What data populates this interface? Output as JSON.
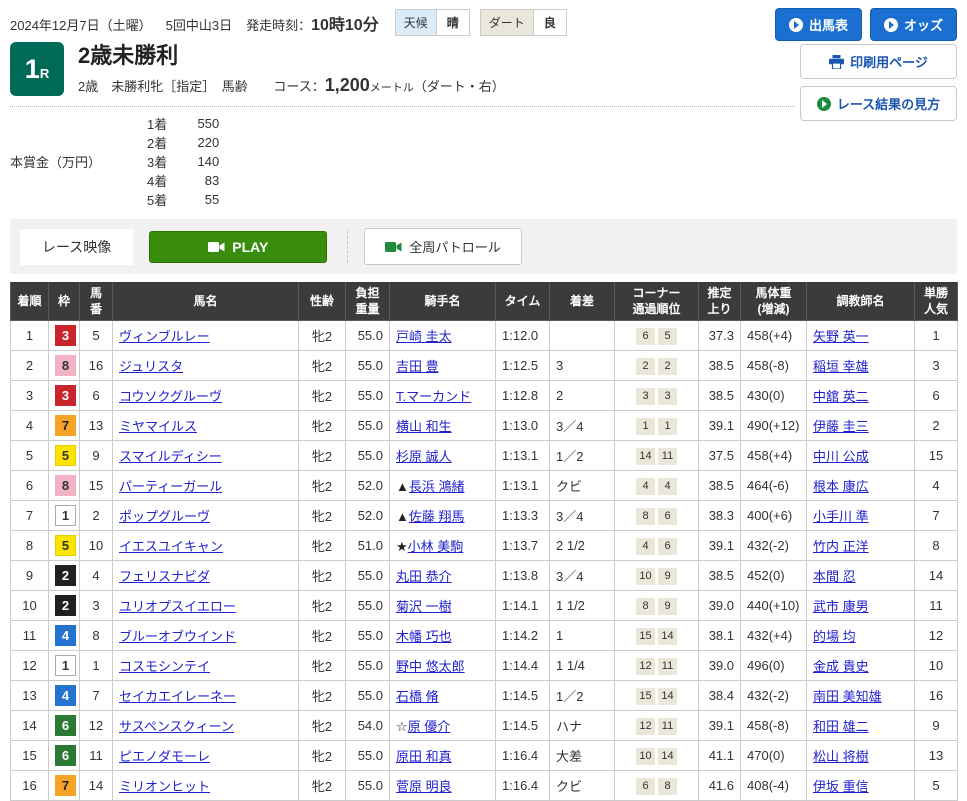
{
  "top": {
    "date": "2024年12月7日（土曜）",
    "meeting": "5回中山3日",
    "start_label": "発走時刻：",
    "start_time": "10時10分",
    "weather_label": "天候",
    "weather_value": "晴",
    "track_label": "ダート",
    "track_value": "良",
    "shutsuba_button": "出馬表",
    "odds_button": "オッズ",
    "print_button": "印刷用ページ",
    "guide_button": "レース結果の見方"
  },
  "race": {
    "number": "1",
    "number_suffix": "R",
    "title": "2歳未勝利",
    "conditions": "2歳　未勝利牝［指定］　馬齢",
    "course_label": "コース：",
    "course_value": "1,200",
    "course_unit": "メートル",
    "course_note": "（ダート・右）"
  },
  "prize": {
    "label": "本賞金（万円）",
    "items": [
      {
        "place": "1着",
        "amount": "550"
      },
      {
        "place": "2着",
        "amount": "220"
      },
      {
        "place": "3着",
        "amount": "140"
      },
      {
        "place": "4着",
        "amount": "83"
      },
      {
        "place": "5着",
        "amount": "55"
      }
    ]
  },
  "video": {
    "race_video_label": "レース映像",
    "play_label": "PLAY",
    "patrol_label": "全周パトロール"
  },
  "table": {
    "columns": [
      "着順",
      "枠",
      "馬\n番",
      "馬名",
      "性齢",
      "負担\n重量",
      "騎手名",
      "タイム",
      "着差",
      "コーナー\n通過順位",
      "推定\n上り",
      "馬体重\n(増減)",
      "調教師名",
      "単勝\n人気"
    ],
    "rows": [
      {
        "rank": "1",
        "waku": "3",
        "num": "5",
        "horse": "ヴィンブルレー",
        "sexage": "牝2",
        "weight": "55.0",
        "mark": "",
        "jockey": "戸崎 圭太",
        "time": "1:12.0",
        "margin": "",
        "corners": [
          "6",
          "5"
        ],
        "agari": "37.3",
        "hweight": "458(+4)",
        "trainer": "矢野 英一",
        "fav": "1"
      },
      {
        "rank": "2",
        "waku": "8",
        "num": "16",
        "horse": "ジュリスタ",
        "sexage": "牝2",
        "weight": "55.0",
        "mark": "",
        "jockey": "吉田 豊",
        "time": "1:12.5",
        "margin": "3",
        "corners": [
          "2",
          "2"
        ],
        "agari": "38.5",
        "hweight": "458(-8)",
        "trainer": "稲垣 幸雄",
        "fav": "3"
      },
      {
        "rank": "3",
        "waku": "3",
        "num": "6",
        "horse": "コウソクグルーヴ",
        "sexage": "牝2",
        "weight": "55.0",
        "mark": "",
        "jockey": "T.マーカンド",
        "time": "1:12.8",
        "margin": "2",
        "corners": [
          "3",
          "3"
        ],
        "agari": "38.5",
        "hweight": "430(0)",
        "trainer": "中舘 英二",
        "fav": "6"
      },
      {
        "rank": "4",
        "waku": "7",
        "num": "13",
        "horse": "ミヤマイルス",
        "sexage": "牝2",
        "weight": "55.0",
        "mark": "",
        "jockey": "横山 和生",
        "time": "1:13.0",
        "margin": "3／4",
        "corners": [
          "1",
          "1"
        ],
        "agari": "39.1",
        "hweight": "490(+12)",
        "trainer": "伊藤 圭三",
        "fav": "2"
      },
      {
        "rank": "5",
        "waku": "5",
        "num": "9",
        "horse": "スマイルディシー",
        "sexage": "牝2",
        "weight": "55.0",
        "mark": "",
        "jockey": "杉原 誠人",
        "time": "1:13.1",
        "margin": "1／2",
        "corners": [
          "14",
          "11"
        ],
        "agari": "37.5",
        "hweight": "458(+4)",
        "trainer": "中川 公成",
        "fav": "15"
      },
      {
        "rank": "6",
        "waku": "8",
        "num": "15",
        "horse": "パーティーガール",
        "sexage": "牝2",
        "weight": "52.0",
        "mark": "▲",
        "jockey": "長浜 鴻緒",
        "time": "1:13.1",
        "margin": "クビ",
        "corners": [
          "4",
          "4"
        ],
        "agari": "38.5",
        "hweight": "464(-6)",
        "trainer": "根本 康広",
        "fav": "4"
      },
      {
        "rank": "7",
        "waku": "1",
        "num": "2",
        "horse": "ポップグルーヴ",
        "sexage": "牝2",
        "weight": "52.0",
        "mark": "▲",
        "jockey": "佐藤 翔馬",
        "time": "1:13.3",
        "margin": "3／4",
        "corners": [
          "8",
          "6"
        ],
        "agari": "38.3",
        "hweight": "400(+6)",
        "trainer": "小手川 準",
        "fav": "7"
      },
      {
        "rank": "8",
        "waku": "5",
        "num": "10",
        "horse": "イエスユイキャン",
        "sexage": "牝2",
        "weight": "51.0",
        "mark": "★",
        "jockey": "小林 美駒",
        "time": "1:13.7",
        "margin": "2 1/2",
        "corners": [
          "4",
          "6"
        ],
        "agari": "39.1",
        "hweight": "432(-2)",
        "trainer": "竹内 正洋",
        "fav": "8"
      },
      {
        "rank": "9",
        "waku": "2",
        "num": "4",
        "horse": "フェリスナビダ",
        "sexage": "牝2",
        "weight": "55.0",
        "mark": "",
        "jockey": "丸田 恭介",
        "time": "1:13.8",
        "margin": "3／4",
        "corners": [
          "10",
          "9"
        ],
        "agari": "38.5",
        "hweight": "452(0)",
        "trainer": "本間 忍",
        "fav": "14"
      },
      {
        "rank": "10",
        "waku": "2",
        "num": "3",
        "horse": "ユリオプスイエロー",
        "sexage": "牝2",
        "weight": "55.0",
        "mark": "",
        "jockey": "菊沢 一樹",
        "time": "1:14.1",
        "margin": "1 1/2",
        "corners": [
          "8",
          "9"
        ],
        "agari": "39.0",
        "hweight": "440(+10)",
        "trainer": "武市 康男",
        "fav": "11"
      },
      {
        "rank": "11",
        "waku": "4",
        "num": "8",
        "horse": "ブルーオブウインド",
        "sexage": "牝2",
        "weight": "55.0",
        "mark": "",
        "jockey": "木幡 巧也",
        "time": "1:14.2",
        "margin": "1",
        "corners": [
          "15",
          "14"
        ],
        "agari": "38.1",
        "hweight": "432(+4)",
        "trainer": "的場 均",
        "fav": "12"
      },
      {
        "rank": "12",
        "waku": "1",
        "num": "1",
        "horse": "コスモシンテイ",
        "sexage": "牝2",
        "weight": "55.0",
        "mark": "",
        "jockey": "野中 悠太郎",
        "time": "1:14.4",
        "margin": "1 1/4",
        "corners": [
          "12",
          "11"
        ],
        "agari": "39.0",
        "hweight": "496(0)",
        "trainer": "金成 貴史",
        "fav": "10"
      },
      {
        "rank": "13",
        "waku": "4",
        "num": "7",
        "horse": "セイカエイレーネー",
        "sexage": "牝2",
        "weight": "55.0",
        "mark": "",
        "jockey": "石橋 脩",
        "time": "1:14.5",
        "margin": "1／2",
        "corners": [
          "15",
          "14"
        ],
        "agari": "38.4",
        "hweight": "432(-2)",
        "trainer": "南田 美知雄",
        "fav": "16"
      },
      {
        "rank": "14",
        "waku": "6",
        "num": "12",
        "horse": "サスペンスクィーン",
        "sexage": "牝2",
        "weight": "54.0",
        "mark": "☆",
        "jockey": "原 優介",
        "time": "1:14.5",
        "margin": "ハナ",
        "corners": [
          "12",
          "11"
        ],
        "agari": "39.1",
        "hweight": "458(-8)",
        "trainer": "和田 雄二",
        "fav": "9"
      },
      {
        "rank": "15",
        "waku": "6",
        "num": "11",
        "horse": "ピエノダモーレ",
        "sexage": "牝2",
        "weight": "55.0",
        "mark": "",
        "jockey": "原田 和真",
        "time": "1:16.4",
        "margin": "大差",
        "corners": [
          "10",
          "14"
        ],
        "agari": "41.1",
        "hweight": "470(0)",
        "trainer": "松山 将樹",
        "fav": "13"
      },
      {
        "rank": "16",
        "waku": "7",
        "num": "14",
        "horse": "ミリオンヒット",
        "sexage": "牝2",
        "weight": "55.0",
        "mark": "",
        "jockey": "菅原 明良",
        "time": "1:16.4",
        "margin": "クビ",
        "corners": [
          "6",
          "8"
        ],
        "agari": "41.6",
        "hweight": "408(-4)",
        "trainer": "伊坂 重信",
        "fav": "5"
      }
    ]
  },
  "colors": {
    "accent_blue": "#1a6fd0",
    "badge_green": "#006a58",
    "play_green": "#388e0c",
    "header_bg": "#3b3b3b",
    "link_blue": "#2222cc",
    "waku": {
      "1": {
        "bg": "#ffffff",
        "fg": "#333333",
        "border": "#aaaaaa"
      },
      "2": {
        "bg": "#221f1f",
        "fg": "#ffffff",
        "border": "#221f1f"
      },
      "3": {
        "bg": "#c9252d",
        "fg": "#ffffff",
        "border": "#c9252d"
      },
      "4": {
        "bg": "#2373cf",
        "fg": "#ffffff",
        "border": "#2373cf"
      },
      "5": {
        "bg": "#ffe400",
        "fg": "#333333",
        "border": "#e6cd00"
      },
      "6": {
        "bg": "#2a7a35",
        "fg": "#ffffff",
        "border": "#2a7a35"
      },
      "7": {
        "bg": "#f6a427",
        "fg": "#222222",
        "border": "#f6a427"
      },
      "8": {
        "bg": "#f3b3c5",
        "fg": "#333333",
        "border": "#f3b3c5"
      }
    }
  }
}
